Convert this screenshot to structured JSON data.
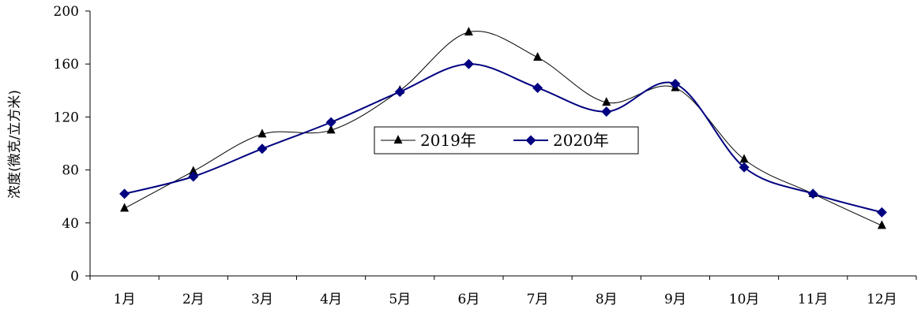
{
  "chart_data": {
    "type": "line",
    "ylabel": "浓度(微克/立方米)",
    "xlabel": "",
    "ylim": [
      0,
      200
    ],
    "yticks": [
      "0",
      "40",
      "80",
      "120",
      "160",
      "200"
    ],
    "categories": [
      "1月",
      "2月",
      "3月",
      "4月",
      "5月",
      "6月",
      "7月",
      "8月",
      "9月",
      "10月",
      "11月",
      "12月"
    ],
    "smooth": true,
    "grid": false,
    "legend_position": "center-right",
    "series": [
      {
        "name": "2019年",
        "values": [
          51,
          79,
          107,
          110,
          140,
          184,
          165,
          131,
          142,
          88,
          62,
          38
        ],
        "marker": "triangle",
        "color": "#000000"
      },
      {
        "name": "2020年",
        "values": [
          62,
          75,
          96,
          116,
          139,
          160,
          142,
          124,
          145,
          82,
          62,
          48
        ],
        "marker": "diamond",
        "color": "#000080"
      }
    ]
  }
}
